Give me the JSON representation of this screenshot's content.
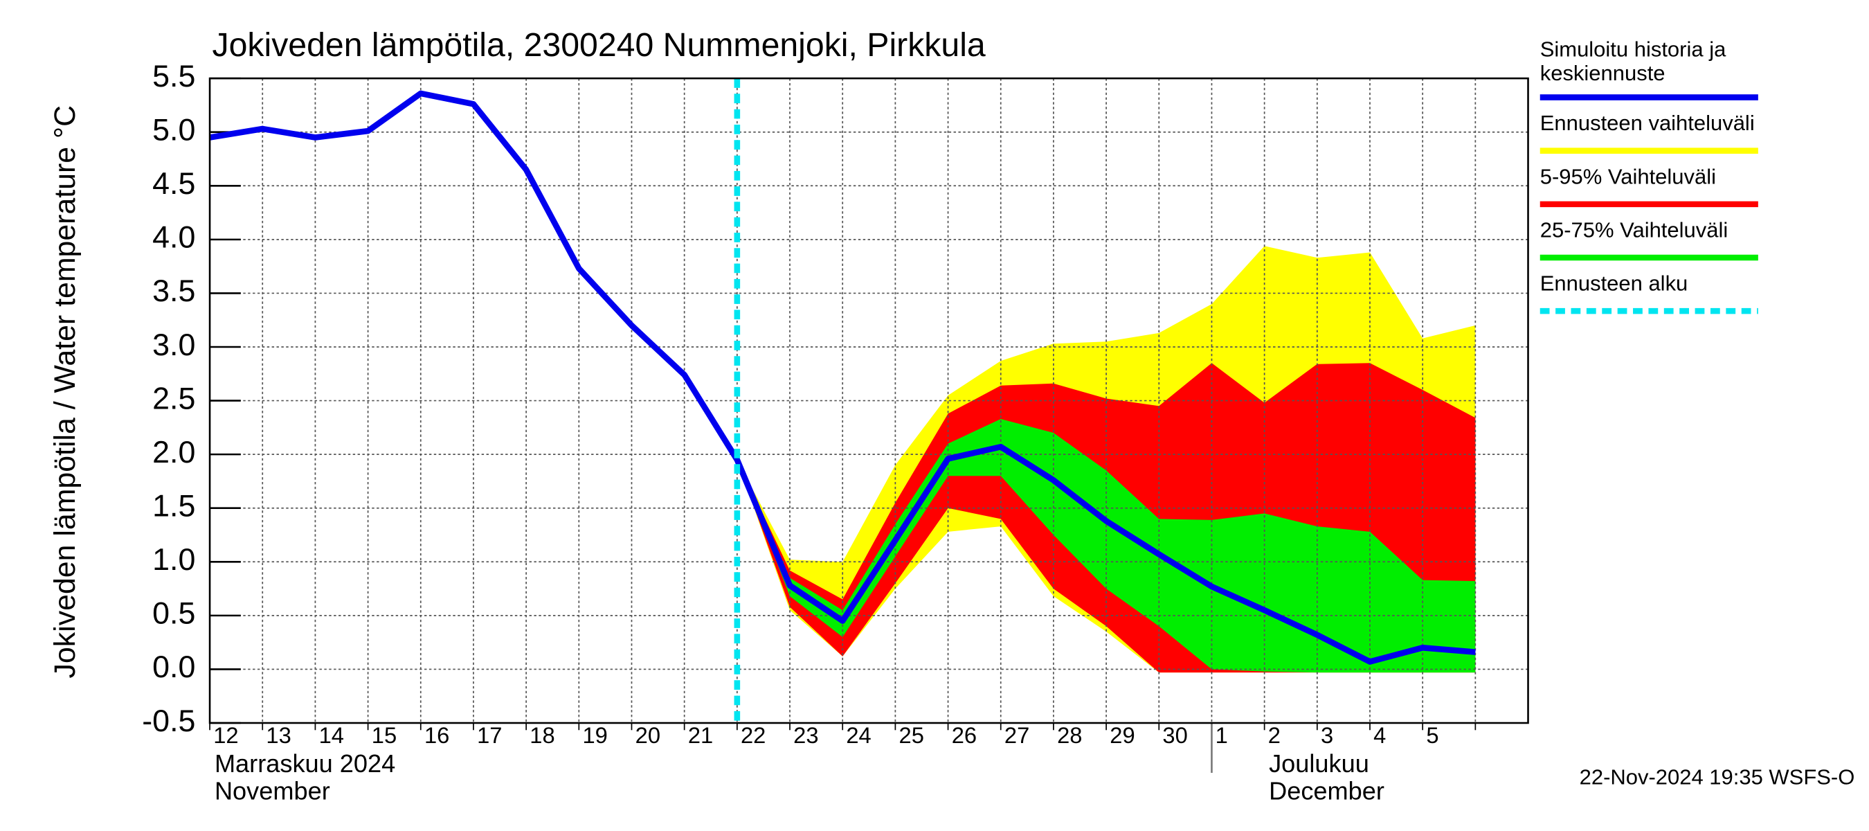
{
  "chart_data": {
    "type": "band-line",
    "title": "Jokiveden lämpötila, 2300240 Nummenjoki, Pirkkula",
    "y_label": "Jokiveden lämpötila / Water temperature   °C",
    "categories": [
      "12",
      "13",
      "14",
      "15",
      "16",
      "17",
      "18",
      "19",
      "20",
      "21",
      "22",
      "23",
      "24",
      "25",
      "26",
      "27",
      "28",
      "29",
      "30",
      "1",
      "2",
      "3",
      "4",
      "5",
      null
    ],
    "months": [
      {
        "fi": "Marraskuu 2024",
        "en": "November"
      },
      {
        "fi": "Joulukuu",
        "en": "December"
      }
    ],
    "forecast_start": "22",
    "forecast_start_name": "Ennusteen alku",
    "forecast_start_color": "#00e5f0",
    "ylim": [
      -0.5,
      5.5
    ],
    "yticks": [
      {
        "value": -0.5,
        "label": "-0.5"
      },
      {
        "value": 0,
        "label": "0.0"
      },
      {
        "value": 0.5,
        "label": "0.5"
      },
      {
        "value": 1,
        "label": "1.0"
      },
      {
        "value": 1.5,
        "label": "1.5"
      },
      {
        "value": 2,
        "label": "2.0"
      },
      {
        "value": 2.5,
        "label": "2.5"
      },
      {
        "value": 3,
        "label": "3.0"
      },
      {
        "value": 3.5,
        "label": "3.5"
      },
      {
        "value": 4,
        "label": "4.0"
      },
      {
        "value": 4.5,
        "label": "4.5"
      },
      {
        "value": 5,
        "label": "5.0"
      },
      {
        "value": 5.5,
        "label": "5.5"
      }
    ],
    "grid": true,
    "series": [
      {
        "name": "Simuloitu historia ja keskiennuste",
        "color": "#0000ee",
        "values": [
          4.95,
          5.03,
          4.95,
          5.01,
          5.36,
          5.26,
          4.65,
          3.73,
          3.2,
          2.74,
          1.95,
          0.78,
          0.45,
          1.2,
          1.96,
          2.07,
          1.76,
          1.38,
          1.07,
          0.77,
          0.55,
          0.32,
          0.07,
          0.2,
          0.16
        ]
      }
    ],
    "bands": [
      {
        "name": "Ennusteen vaihteluväli",
        "color": "#ffff00",
        "upper": [
          null,
          null,
          null,
          null,
          null,
          null,
          null,
          null,
          null,
          null,
          1.95,
          1.02,
          1.0,
          1.9,
          2.55,
          2.87,
          3.03,
          3.05,
          3.13,
          3.4,
          3.94,
          3.83,
          3.88,
          3.08,
          3.2
        ],
        "lower": [
          null,
          null,
          null,
          null,
          null,
          null,
          null,
          null,
          null,
          null,
          1.95,
          0.55,
          0.12,
          0.75,
          1.28,
          1.33,
          0.68,
          0.35,
          -0.03,
          -0.03,
          -0.03,
          -0.03,
          -0.03,
          -0.03,
          -0.03
        ]
      },
      {
        "name": "5-95% Vaihteluväli",
        "color": "#ff0000",
        "upper": [
          null,
          null,
          null,
          null,
          null,
          null,
          null,
          null,
          null,
          null,
          1.95,
          0.92,
          0.65,
          1.55,
          2.38,
          2.64,
          2.66,
          2.52,
          2.45,
          2.85,
          2.48,
          2.84,
          2.85,
          2.6,
          2.34
        ],
        "lower": [
          null,
          null,
          null,
          null,
          null,
          null,
          null,
          null,
          null,
          null,
          1.95,
          0.58,
          0.12,
          0.8,
          1.5,
          1.4,
          0.75,
          0.4,
          -0.03,
          -0.03,
          -0.03,
          -0.03,
          -0.03,
          -0.03,
          -0.03
        ]
      },
      {
        "name": "25-75% Vaihteluväli",
        "color": "#00ee00",
        "upper": [
          null,
          null,
          null,
          null,
          null,
          null,
          null,
          null,
          null,
          null,
          1.95,
          0.85,
          0.55,
          1.35,
          2.1,
          2.33,
          2.2,
          1.85,
          1.4,
          1.39,
          1.45,
          1.33,
          1.28,
          0.83,
          0.82
        ],
        "lower": [
          null,
          null,
          null,
          null,
          null,
          null,
          null,
          null,
          null,
          null,
          1.95,
          0.68,
          0.3,
          1.05,
          1.8,
          1.8,
          1.25,
          0.75,
          0.4,
          0.0,
          -0.02,
          -0.03,
          -0.03,
          -0.03,
          -0.03
        ]
      }
    ],
    "timestamp": "22-Nov-2024 19:35 WSFS-O"
  }
}
